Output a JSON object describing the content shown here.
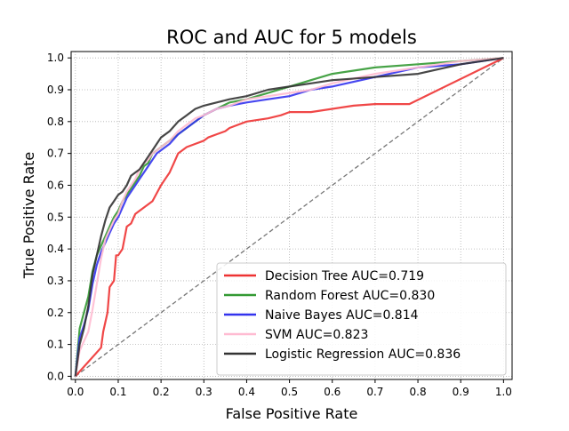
{
  "chart_data": {
    "type": "line",
    "title": "ROC and AUC for 5 models",
    "xlabel": "False Positive Rate",
    "ylabel": "True Positive Rate",
    "xlim": [
      -0.01,
      1.02
    ],
    "ylim": [
      -0.01,
      1.02
    ],
    "xticks": [
      "0.0",
      "0.1",
      "0.2",
      "0.3",
      "0.4",
      "0.5",
      "0.6",
      "0.7",
      "0.8",
      "0.9",
      "1.0"
    ],
    "yticks": [
      "0.0",
      "0.1",
      "0.2",
      "0.3",
      "0.4",
      "0.5",
      "0.6",
      "0.7",
      "0.8",
      "0.9",
      "1.0"
    ],
    "grid": true,
    "legend_position": "lower-right",
    "series": [
      {
        "name": "Decision Tree AUC=0.719",
        "color": "#ee3333",
        "x": [
          0,
          0.06,
          0.065,
          0.075,
          0.08,
          0.09,
          0.095,
          0.1,
          0.105,
          0.11,
          0.12,
          0.13,
          0.14,
          0.15,
          0.16,
          0.18,
          0.2,
          0.21,
          0.22,
          0.23,
          0.24,
          0.26,
          0.28,
          0.3,
          0.31,
          0.33,
          0.35,
          0.36,
          0.38,
          0.4,
          0.45,
          0.48,
          0.5,
          0.55,
          0.6,
          0.65,
          0.7,
          0.72,
          0.78,
          1.0
        ],
        "y": [
          0,
          0.09,
          0.14,
          0.2,
          0.28,
          0.3,
          0.38,
          0.38,
          0.39,
          0.4,
          0.47,
          0.48,
          0.51,
          0.52,
          0.53,
          0.55,
          0.6,
          0.62,
          0.64,
          0.67,
          0.7,
          0.72,
          0.73,
          0.74,
          0.75,
          0.76,
          0.77,
          0.78,
          0.79,
          0.8,
          0.81,
          0.82,
          0.83,
          0.83,
          0.84,
          0.85,
          0.855,
          0.855,
          0.855,
          1.0
        ]
      },
      {
        "name": "Random Forest AUC=0.830",
        "color": "#339933",
        "x": [
          0,
          0.01,
          0.02,
          0.03,
          0.04,
          0.05,
          0.06,
          0.07,
          0.08,
          0.09,
          0.1,
          0.11,
          0.12,
          0.13,
          0.14,
          0.15,
          0.16,
          0.17,
          0.18,
          0.19,
          0.2,
          0.22,
          0.24,
          0.26,
          0.28,
          0.3,
          0.33,
          0.36,
          0.4,
          0.45,
          0.5,
          0.55,
          0.6,
          0.7,
          0.8,
          0.9,
          1.0
        ],
        "y": [
          0,
          0.15,
          0.2,
          0.25,
          0.33,
          0.38,
          0.41,
          0.44,
          0.47,
          0.5,
          0.52,
          0.55,
          0.57,
          0.59,
          0.61,
          0.63,
          0.66,
          0.67,
          0.7,
          0.71,
          0.72,
          0.74,
          0.76,
          0.78,
          0.8,
          0.82,
          0.84,
          0.86,
          0.87,
          0.89,
          0.91,
          0.93,
          0.95,
          0.97,
          0.98,
          0.99,
          1.0
        ]
      },
      {
        "name": "Naive Bayes AUC=0.814",
        "color": "#3333ee",
        "x": [
          0,
          0.01,
          0.02,
          0.03,
          0.04,
          0.05,
          0.06,
          0.07,
          0.08,
          0.09,
          0.1,
          0.11,
          0.12,
          0.13,
          0.14,
          0.15,
          0.16,
          0.17,
          0.18,
          0.19,
          0.2,
          0.22,
          0.24,
          0.26,
          0.28,
          0.3,
          0.33,
          0.36,
          0.4,
          0.45,
          0.5,
          0.55,
          0.6,
          0.7,
          0.8,
          0.9,
          1.0
        ],
        "y": [
          0,
          0.12,
          0.16,
          0.21,
          0.29,
          0.35,
          0.39,
          0.42,
          0.45,
          0.48,
          0.5,
          0.53,
          0.56,
          0.58,
          0.6,
          0.62,
          0.64,
          0.66,
          0.68,
          0.7,
          0.71,
          0.73,
          0.76,
          0.78,
          0.8,
          0.82,
          0.84,
          0.85,
          0.86,
          0.87,
          0.88,
          0.9,
          0.91,
          0.94,
          0.97,
          0.98,
          1.0
        ]
      },
      {
        "name": "SVM AUC=0.823",
        "color": "#ffbbd2",
        "x": [
          0,
          0.01,
          0.02,
          0.03,
          0.04,
          0.05,
          0.06,
          0.07,
          0.08,
          0.09,
          0.1,
          0.11,
          0.12,
          0.13,
          0.14,
          0.15,
          0.16,
          0.17,
          0.18,
          0.19,
          0.2,
          0.22,
          0.24,
          0.26,
          0.28,
          0.3,
          0.33,
          0.36,
          0.4,
          0.45,
          0.5,
          0.55,
          0.6,
          0.7,
          0.8,
          0.9,
          1.0
        ],
        "y": [
          0,
          0.08,
          0.11,
          0.14,
          0.21,
          0.29,
          0.37,
          0.43,
          0.46,
          0.49,
          0.51,
          0.55,
          0.58,
          0.6,
          0.62,
          0.65,
          0.67,
          0.68,
          0.7,
          0.71,
          0.72,
          0.74,
          0.77,
          0.79,
          0.81,
          0.82,
          0.84,
          0.85,
          0.87,
          0.88,
          0.89,
          0.9,
          0.92,
          0.95,
          0.97,
          0.99,
          1.0
        ]
      },
      {
        "name": "Logistic Regression AUC=0.836",
        "color": "#333333",
        "x": [
          0,
          0.01,
          0.02,
          0.03,
          0.04,
          0.05,
          0.06,
          0.07,
          0.08,
          0.09,
          0.1,
          0.11,
          0.12,
          0.13,
          0.14,
          0.15,
          0.16,
          0.17,
          0.18,
          0.19,
          0.2,
          0.22,
          0.24,
          0.26,
          0.28,
          0.3,
          0.33,
          0.36,
          0.4,
          0.45,
          0.5,
          0.55,
          0.6,
          0.7,
          0.8,
          0.9,
          1.0
        ],
        "y": [
          0,
          0.1,
          0.15,
          0.22,
          0.32,
          0.38,
          0.44,
          0.49,
          0.53,
          0.55,
          0.57,
          0.58,
          0.6,
          0.63,
          0.64,
          0.65,
          0.67,
          0.69,
          0.71,
          0.73,
          0.75,
          0.77,
          0.8,
          0.82,
          0.84,
          0.85,
          0.86,
          0.87,
          0.88,
          0.9,
          0.91,
          0.92,
          0.93,
          0.94,
          0.95,
          0.98,
          1.0
        ]
      }
    ],
    "reference_line": {
      "x": [
        0,
        1
      ],
      "y": [
        0,
        1
      ],
      "color": "#777777",
      "style": "dashed"
    }
  }
}
